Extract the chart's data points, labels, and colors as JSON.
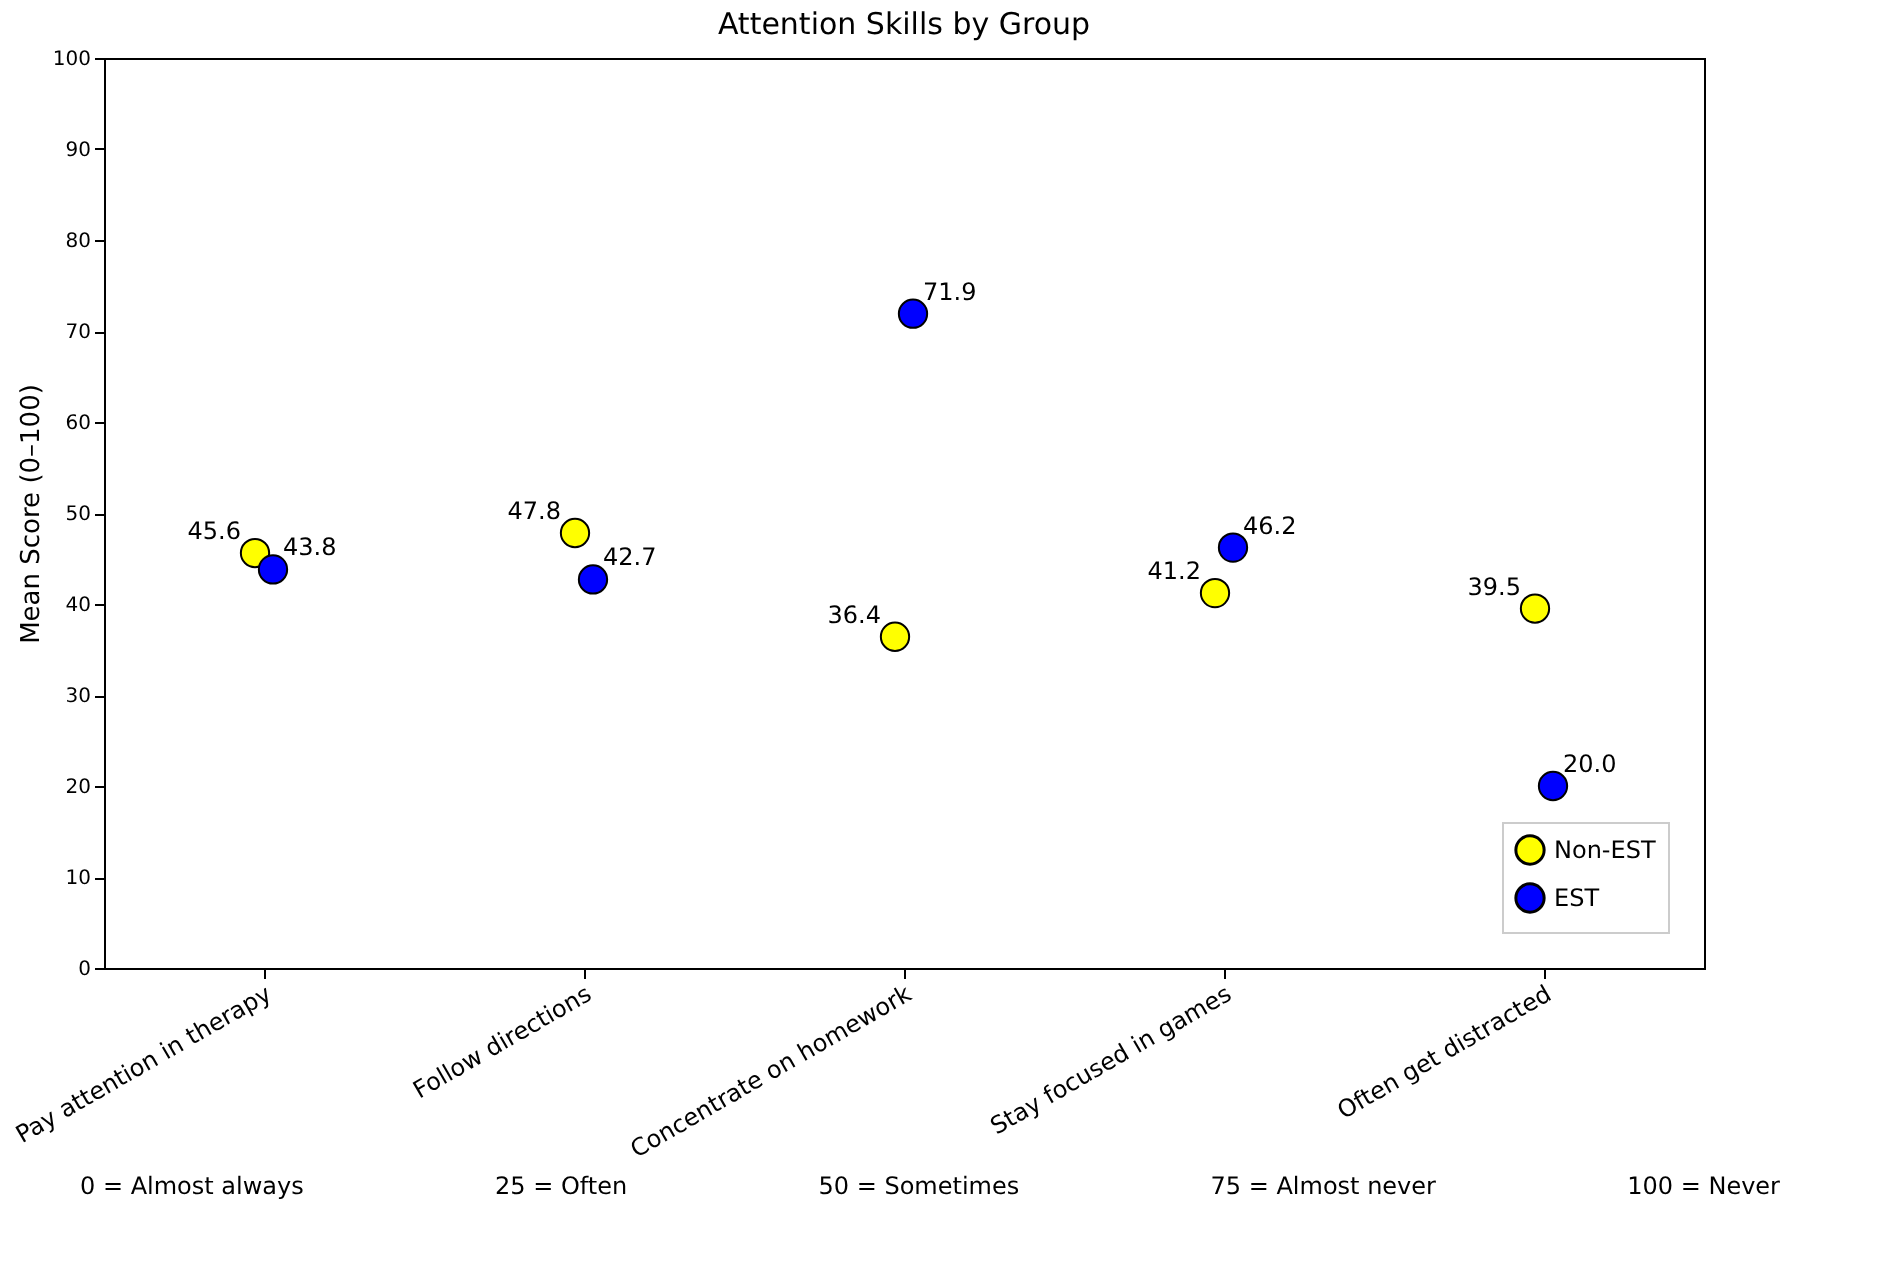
{
  "chart_data": {
    "type": "scatter",
    "title": "Attention Skills by Group",
    "ylabel": "Mean Score (0–100)",
    "categories": [
      "Pay attention in therapy",
      "Follow directions",
      "Concentrate on homework",
      "Stay focused in games",
      "Often get distracted"
    ],
    "series": [
      {
        "name": "Non-EST",
        "color": "#ffff00",
        "values": [
          45.6,
          47.8,
          36.4,
          41.2,
          39.5
        ],
        "value_labels": [
          "45.6",
          "47.8",
          "36.4",
          "41.2",
          "39.5"
        ]
      },
      {
        "name": "EST",
        "color": "#0000ff",
        "values": [
          43.8,
          42.7,
          71.9,
          46.2,
          20.0
        ],
        "value_labels": [
          "43.8",
          "42.7",
          "71.9",
          "46.2",
          "20.0"
        ]
      }
    ],
    "ylim": [
      0,
      100
    ],
    "yticks": [
      0,
      10,
      20,
      30,
      40,
      50,
      60,
      70,
      80,
      90,
      100
    ],
    "grid": false,
    "legend": "bottom right",
    "marker": "circle",
    "annotations": [
      "0 = Almost always",
      "25 = Often",
      "50 = Sometimes",
      "75 = Almost never",
      "100 = Never"
    ]
  }
}
